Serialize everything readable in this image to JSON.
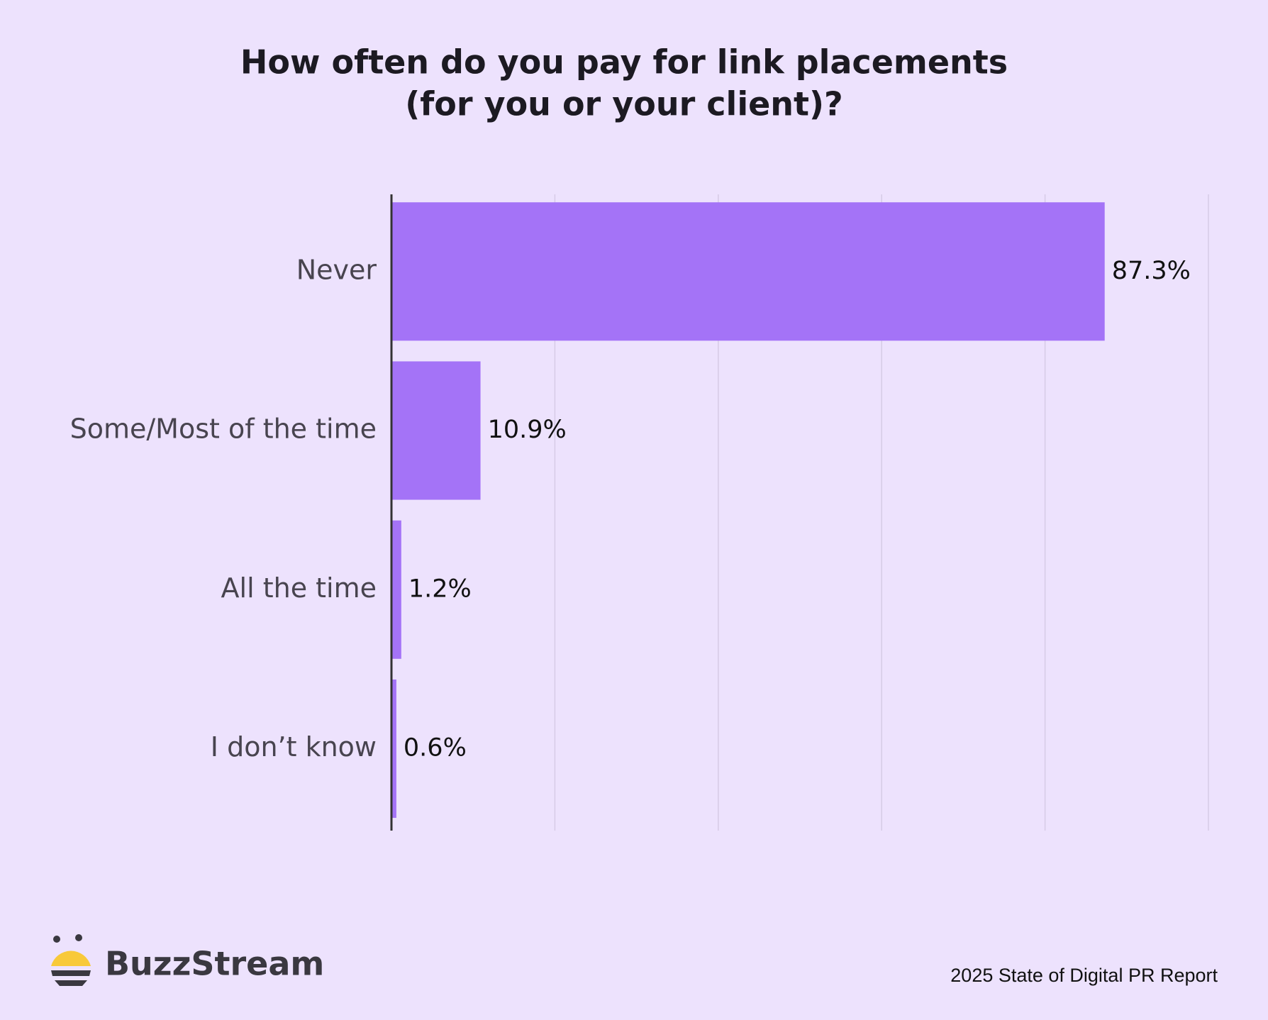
{
  "chart_data": {
    "type": "bar",
    "orientation": "horizontal",
    "title": [
      "How often do you pay for link placements",
      "(for you or your client)?"
    ],
    "categories": [
      "Never",
      "Some/Most of the time",
      "All the time",
      "I don’t know"
    ],
    "values": [
      87.3,
      10.9,
      1.2,
      0.6
    ],
    "value_labels": [
      "87.3%",
      "10.9%",
      "1.2%",
      "0.6%"
    ],
    "color": "#a473f7",
    "xlim": [
      0,
      100
    ],
    "xticks": [
      0,
      20,
      40,
      60,
      80,
      100
    ],
    "grid": true
  },
  "footer": {
    "brand": "BuzzStream",
    "source": "2025 State of Digital PR Report"
  }
}
